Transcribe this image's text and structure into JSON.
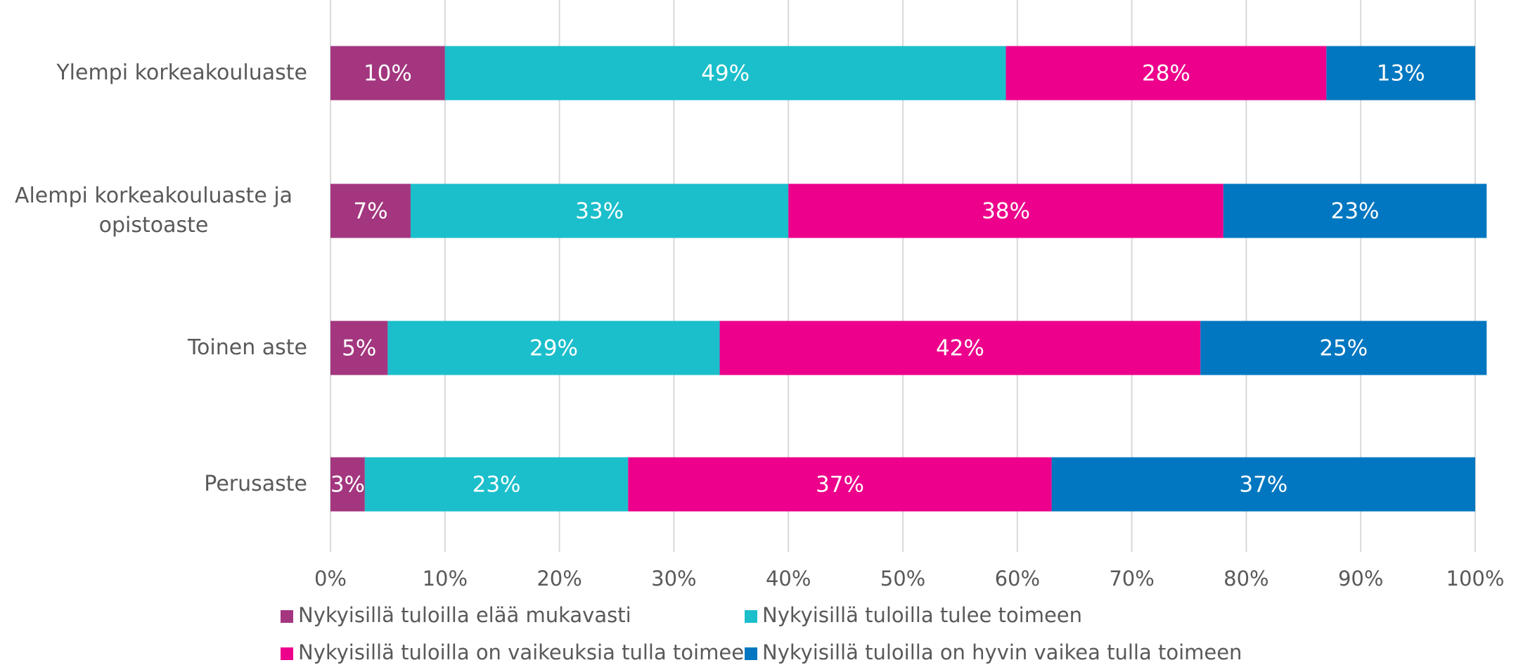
{
  "chart_data": {
    "type": "stacked-bar-horizontal",
    "categories": [
      "Ylempi korkeakouluaste",
      "Alempi korkeakouluaste ja opistoaste",
      "Toinen aste",
      "Perusaste"
    ],
    "series": [
      {
        "name": "Nykyisillä tuloilla elää mukavasti",
        "color": "#a3367f",
        "values": [
          10,
          7,
          5,
          3
        ],
        "value_labels": [
          "10%",
          "7%",
          "5%",
          "3%"
        ]
      },
      {
        "name": "Nykyisillä tuloilla tulee toimeen",
        "color": "#1bbfcb",
        "values": [
          49,
          33,
          29,
          23
        ],
        "value_labels": [
          "49%",
          "33%",
          "29%",
          "23%"
        ]
      },
      {
        "name": "Nykyisillä tuloilla on vaikeuksia tulla toimeen",
        "color": "#ec008c",
        "values": [
          28,
          38,
          42,
          37
        ],
        "value_labels": [
          "28%",
          "38%",
          "42%",
          "37%"
        ]
      },
      {
        "name": "Nykyisillä tuloilla on hyvin vaikea tulla toimeen",
        "color": "#0077c0",
        "values": [
          13,
          23,
          25,
          37
        ],
        "value_labels": [
          "13%",
          "23%",
          "25%",
          "37%"
        ]
      }
    ],
    "xlim": [
      0,
      100
    ],
    "xticks": [
      {
        "value": 0,
        "label": "0%"
      },
      {
        "value": 10,
        "label": "10%"
      },
      {
        "value": 20,
        "label": "20%"
      },
      {
        "value": 30,
        "label": "30%"
      },
      {
        "value": 40,
        "label": "40%"
      },
      {
        "value": 50,
        "label": "50%"
      },
      {
        "value": 60,
        "label": "60%"
      },
      {
        "value": 70,
        "label": "70%"
      },
      {
        "value": 80,
        "label": "80%"
      },
      {
        "value": 90,
        "label": "90%"
      },
      {
        "value": 100,
        "label": "100%"
      }
    ],
    "grid": true,
    "legend": "bottom"
  }
}
